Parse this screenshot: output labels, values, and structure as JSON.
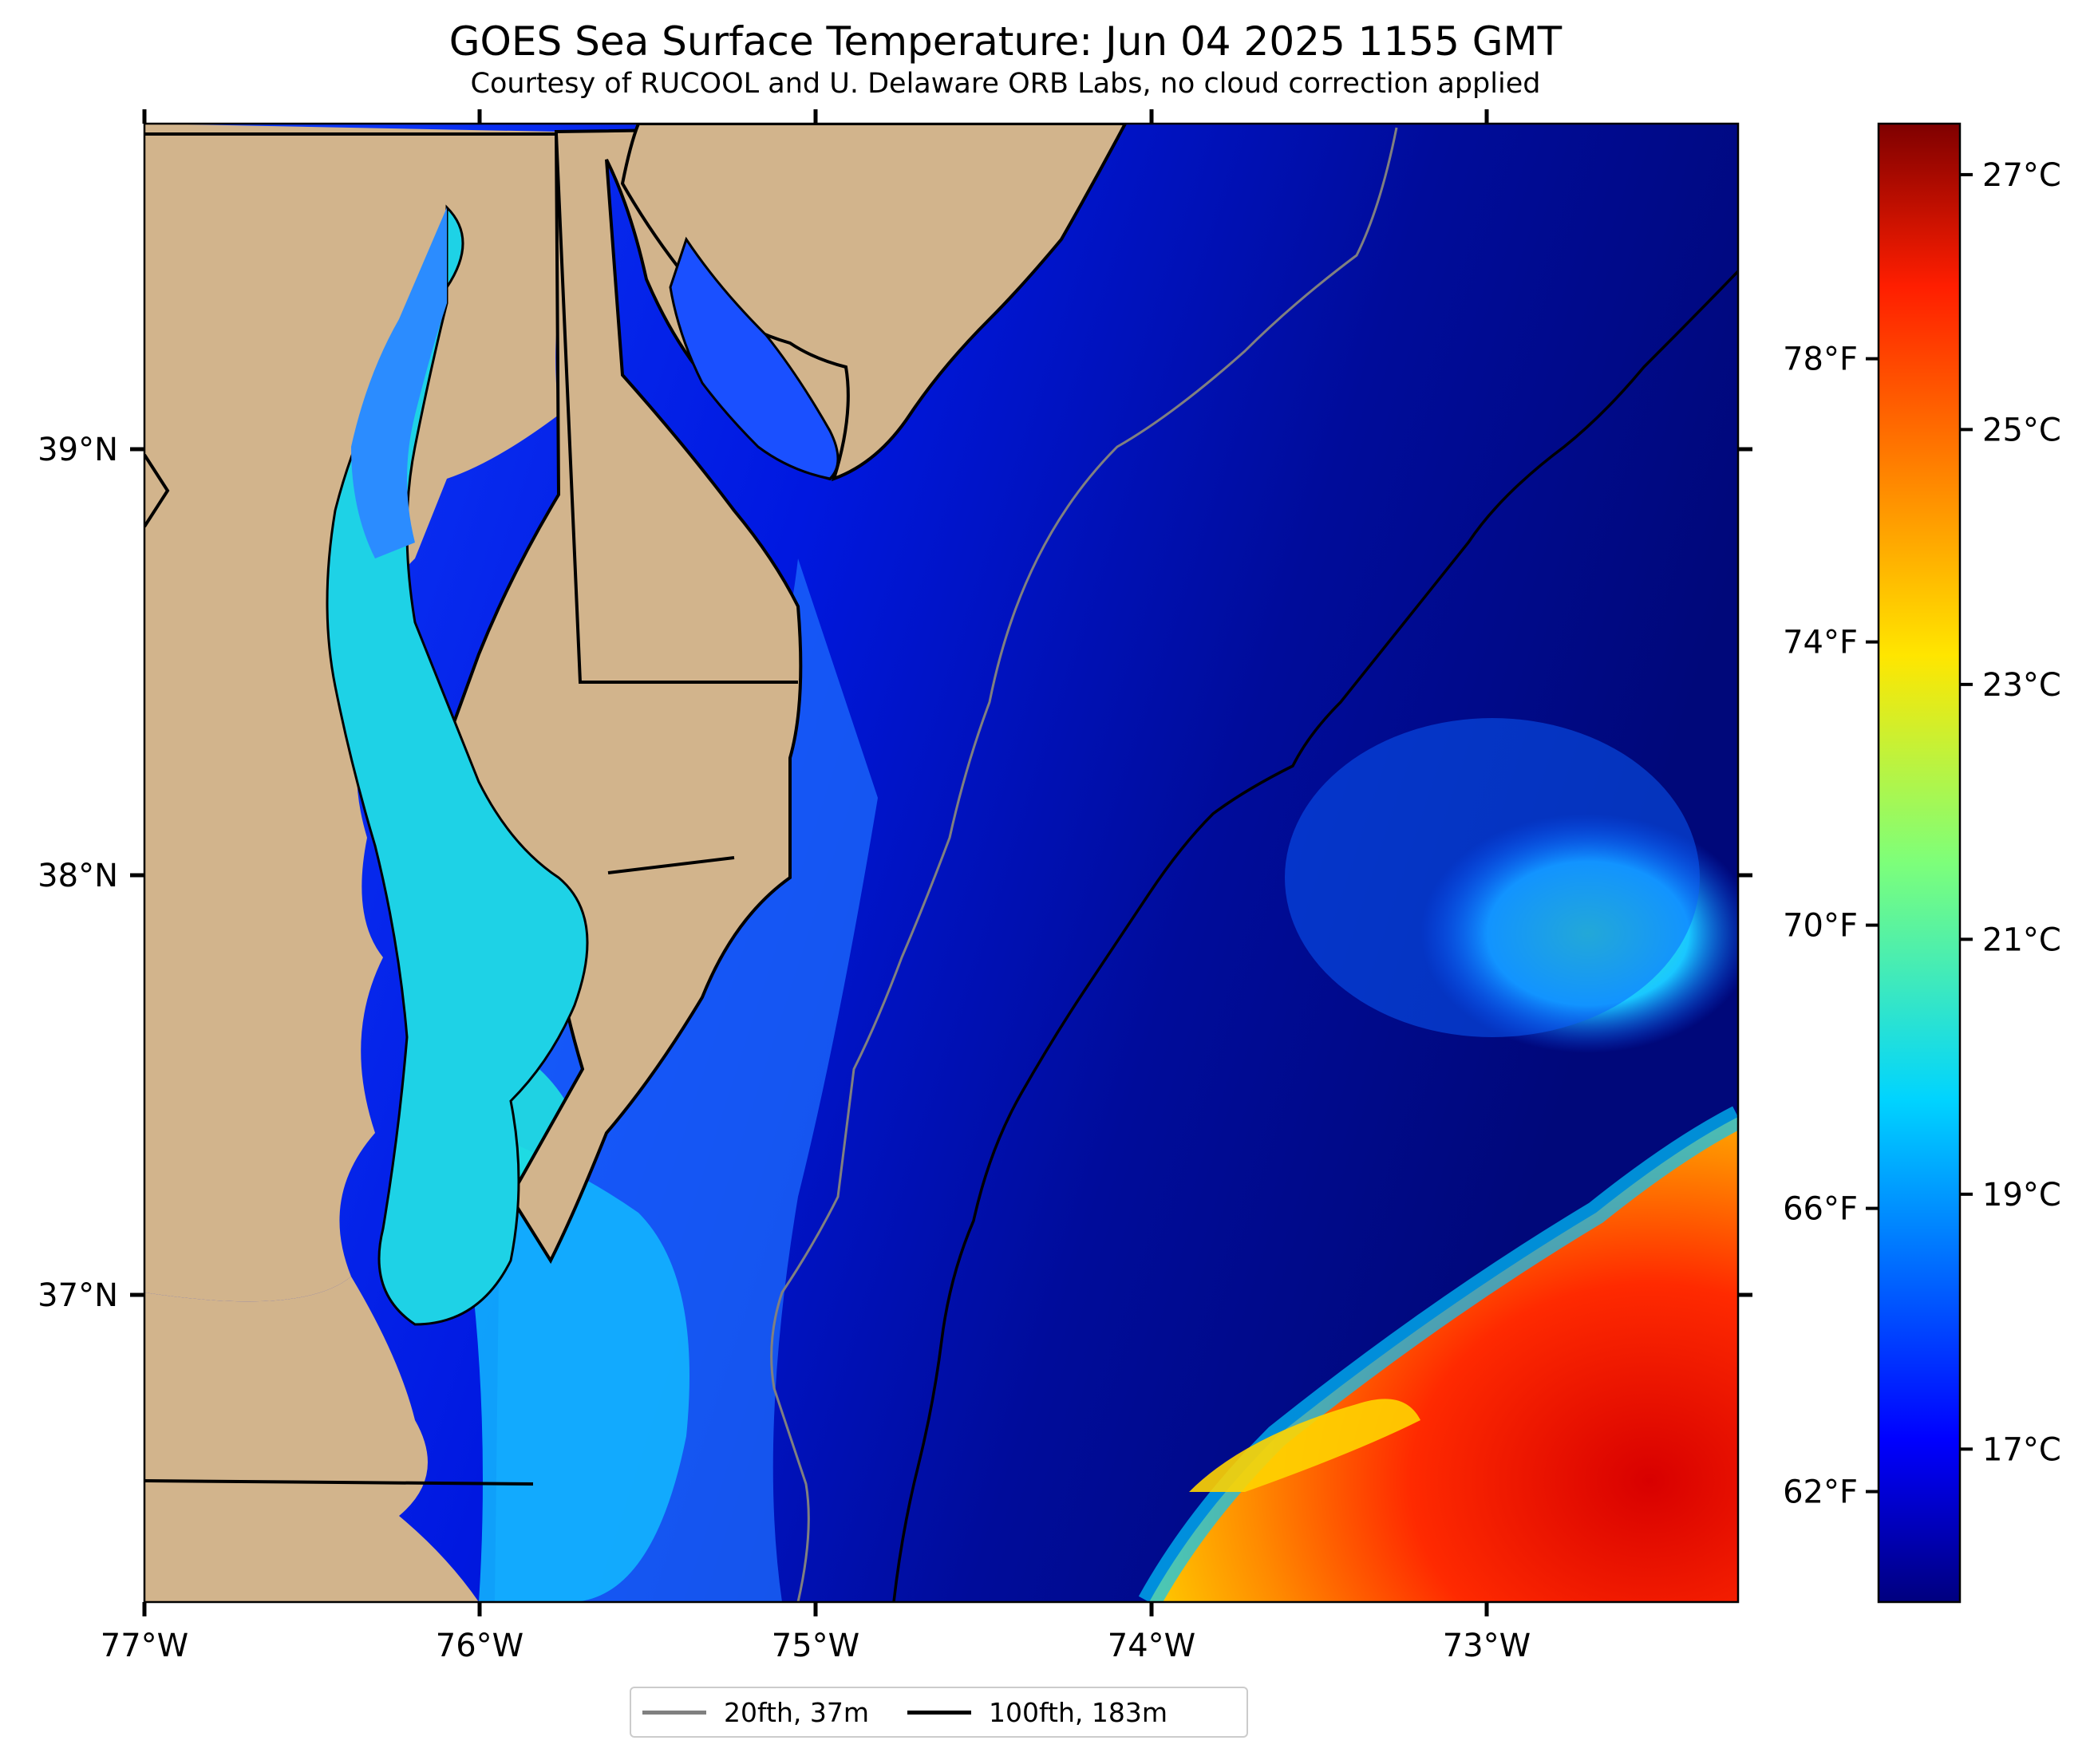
{
  "title": "GOES Sea Surface Temperature: Jun 04 2025 1155 GMT",
  "subtitle": "Courtesy of RUCOOL and U. Delaware ORB Labs, no cloud correction applied",
  "map": {
    "lon_range": [
      -77.0,
      -72.25
    ],
    "lat_range": [
      36.2,
      39.75
    ],
    "lon_ticks": [
      "77°W",
      "76°W",
      "75°W",
      "74°W",
      "73°W"
    ],
    "lat_ticks": [
      "39°N",
      "38°N",
      "37°N"
    ],
    "land_color": "#d2b48c",
    "coast_color": "#000000"
  },
  "colorbar": {
    "colormap": "jet",
    "celsius_range": [
      15.8,
      27.4
    ],
    "celsius_ticks": [
      {
        "value": 17,
        "label": "17°C"
      },
      {
        "value": 19,
        "label": "19°C"
      },
      {
        "value": 21,
        "label": "21°C"
      },
      {
        "value": 23,
        "label": "23°C"
      },
      {
        "value": 25,
        "label": "25°C"
      },
      {
        "value": 27,
        "label": "27°C"
      }
    ],
    "fahrenheit_ticks": [
      {
        "value": 62,
        "label": "62°F"
      },
      {
        "value": 66,
        "label": "66°F"
      },
      {
        "value": 70,
        "label": "70°F"
      },
      {
        "value": 74,
        "label": "74°F"
      },
      {
        "value": 78,
        "label": "78°F"
      }
    ]
  },
  "legend": {
    "items": [
      {
        "label": "20fth, 37m",
        "color": "#808080"
      },
      {
        "label": "100fth, 183m",
        "color": "#000000"
      }
    ]
  }
}
